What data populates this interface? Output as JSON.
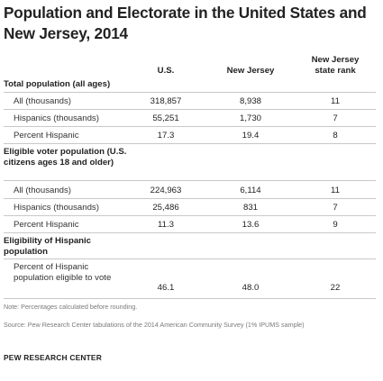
{
  "title": "Population and Electorate in the United States and New Jersey, 2014",
  "columns": {
    "us": "U.S.",
    "nj": "New Jersey",
    "rank": "New Jersey state rank"
  },
  "sections": [
    {
      "heading": "Total population (all ages)",
      "rows": [
        {
          "label": "All (thousands)",
          "us": "318,857",
          "nj": "8,938",
          "rank": "11"
        },
        {
          "label": "Hispanics (thousands)",
          "us": "55,251",
          "nj": "1,730",
          "rank": "7"
        },
        {
          "label": "Percent Hispanic",
          "us": "17.3",
          "nj": "19.4",
          "rank": "8"
        }
      ]
    },
    {
      "heading": "Eligible voter population (U.S. citizens ages 18 and older)",
      "rows": [
        {
          "label": "All (thousands)",
          "us": "224,963",
          "nj": "6,114",
          "rank": "11"
        },
        {
          "label": "Hispanics (thousands)",
          "us": "25,486",
          "nj": "831",
          "rank": "7"
        },
        {
          "label": "Percent Hispanic",
          "us": "11.3",
          "nj": "13.6",
          "rank": "9"
        }
      ]
    },
    {
      "heading": "Eligibility of Hispanic population",
      "rows": [
        {
          "label": "Percent of Hispanic population eligible to vote",
          "us": "46.1",
          "nj": "48.0",
          "rank": "22"
        }
      ]
    }
  ],
  "note": "Note: Percentages calculated before rounding.",
  "source": "Source: Pew Research Center tabulations of the 2014 American Community Survey (1% IPUMS sample)",
  "footer": "PEW RESEARCH CENTER"
}
